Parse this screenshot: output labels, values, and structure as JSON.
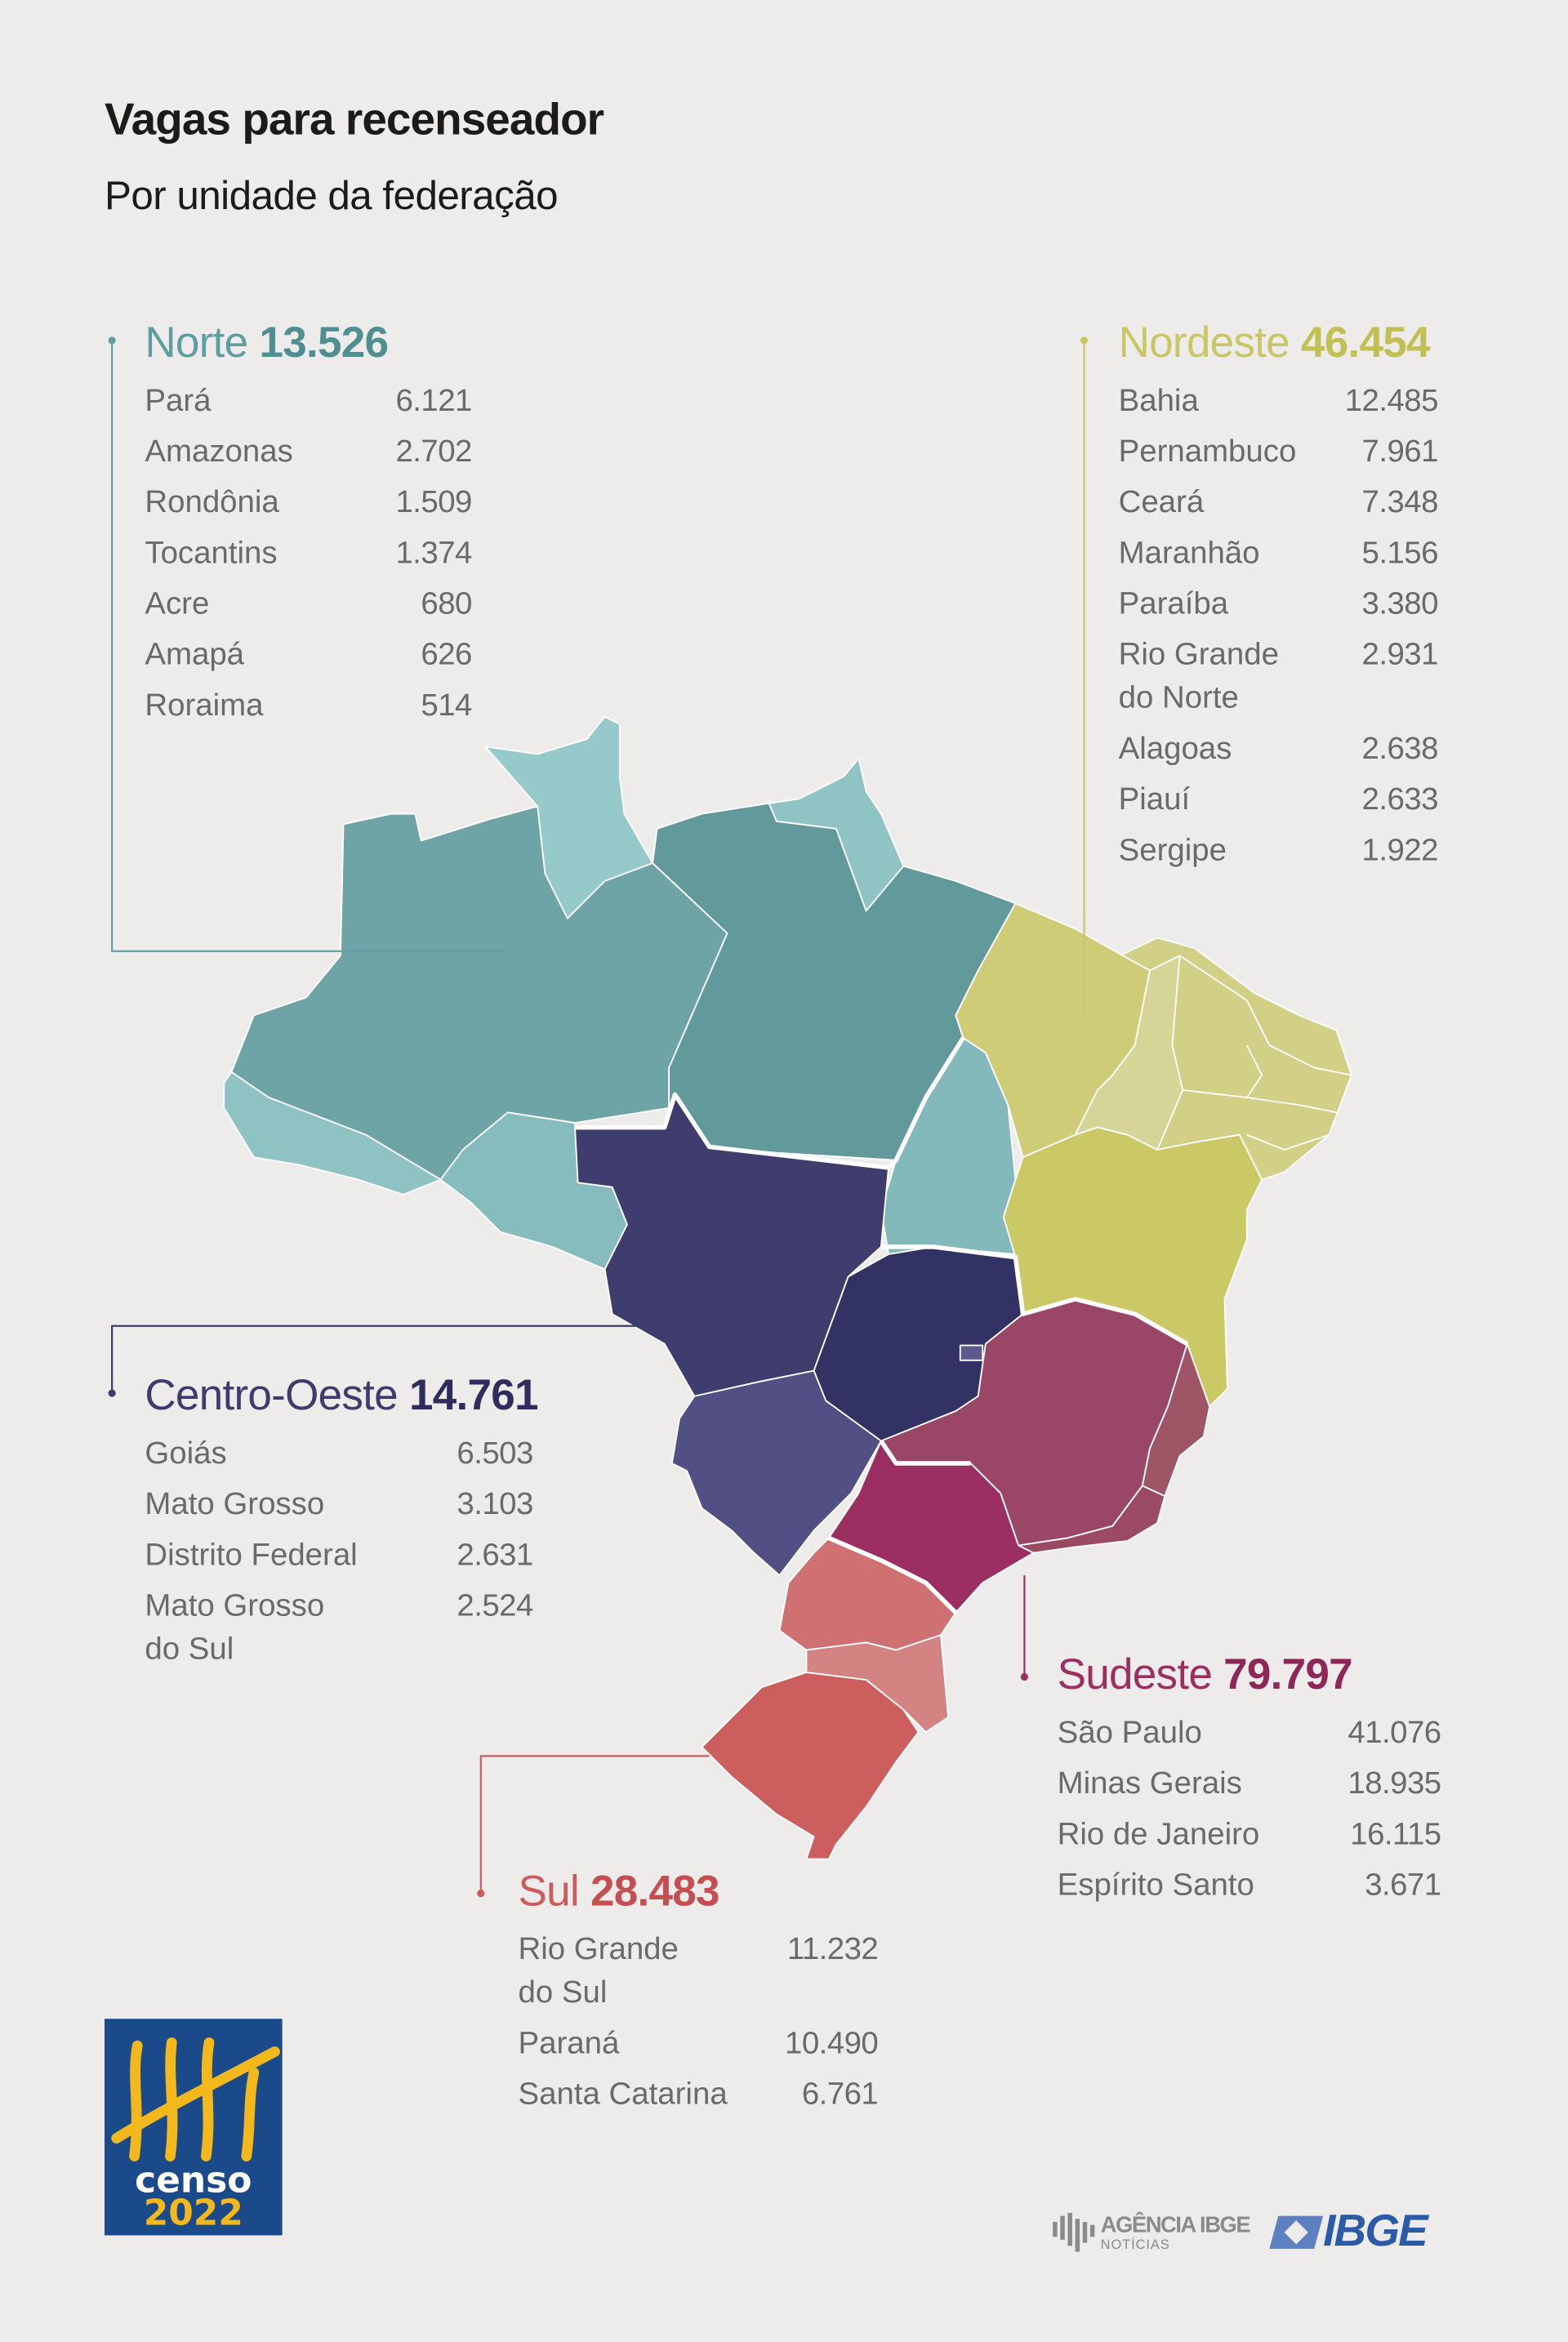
{
  "header": {
    "title": "Vagas para recenseador",
    "subtitle": "Por unidade da federação"
  },
  "regions": [
    {
      "key": "norte",
      "name": "Norte",
      "total": "13.526",
      "color": "#5f9ea0",
      "total_color": "#4f8f92",
      "states": [
        {
          "name": "Pará",
          "value": "6.121"
        },
        {
          "name": "Amazonas",
          "value": "2.702"
        },
        {
          "name": "Rondônia",
          "value": "1.509"
        },
        {
          "name": "Tocantins",
          "value": "1.374"
        },
        {
          "name": "Acre",
          "value": "680"
        },
        {
          "name": "Amapá",
          "value": "626"
        },
        {
          "name": "Roraima",
          "value": "514"
        }
      ]
    },
    {
      "key": "nordeste",
      "name": "Nordeste",
      "total": "46.454",
      "color": "#c9c666",
      "total_color": "#c2bf55",
      "states": [
        {
          "name": "Bahia",
          "value": "12.485"
        },
        {
          "name": "Pernambuco",
          "value": "7.961"
        },
        {
          "name": "Ceará",
          "value": "7.348"
        },
        {
          "name": "Maranhão",
          "value": "5.156"
        },
        {
          "name": "Paraíba",
          "value": "3.380"
        },
        {
          "name": "Rio Grande\ndo Norte",
          "value": "2.931"
        },
        {
          "name": "Alagoas",
          "value": "2.638"
        },
        {
          "name": "Piauí",
          "value": "2.633"
        },
        {
          "name": "Sergipe",
          "value": "1.922"
        }
      ]
    },
    {
      "key": "centro_oeste",
      "name": "Centro-Oeste",
      "total": "14.761",
      "color": "#3e3b6e",
      "total_color": "#2f2c5e",
      "states": [
        {
          "name": "Goiás",
          "value": "6.503"
        },
        {
          "name": "Mato Grosso",
          "value": "3.103"
        },
        {
          "name": "Distrito Federal",
          "value": "2.631"
        },
        {
          "name": "Mato Grosso\ndo Sul",
          "value": "2.524"
        }
      ]
    },
    {
      "key": "sudeste",
      "name": "Sudeste",
      "total": "79.797",
      "color": "#9b2f60",
      "total_color": "#8e2657",
      "states": [
        {
          "name": "São Paulo",
          "value": "41.076"
        },
        {
          "name": "Minas Gerais",
          "value": "18.935"
        },
        {
          "name": "Rio de Janeiro",
          "value": "16.115"
        },
        {
          "name": "Espírito Santo",
          "value": "3.671"
        }
      ]
    },
    {
      "key": "sul",
      "name": "Sul",
      "total": "28.483",
      "color": "#cc5b5d",
      "total_color": "#c44e51",
      "states": [
        {
          "name": "Rio Grande\ndo Sul",
          "value": "11.232"
        },
        {
          "name": "Paraná",
          "value": "10.490"
        },
        {
          "name": "Santa Catarina",
          "value": "6.761"
        }
      ]
    }
  ],
  "logos": {
    "censo_word": "censo",
    "censo_year": "2022",
    "agencia_line1": "AGÊNCIA IBGE",
    "agencia_line2": "NOTÍCIAS",
    "ibge": "IBGE"
  },
  "colors": {
    "background": "#edecea",
    "censo_blue": "#1b4a8a",
    "censo_yellow": "#f2b81c",
    "ibge_blue": "#2c5aa6"
  }
}
